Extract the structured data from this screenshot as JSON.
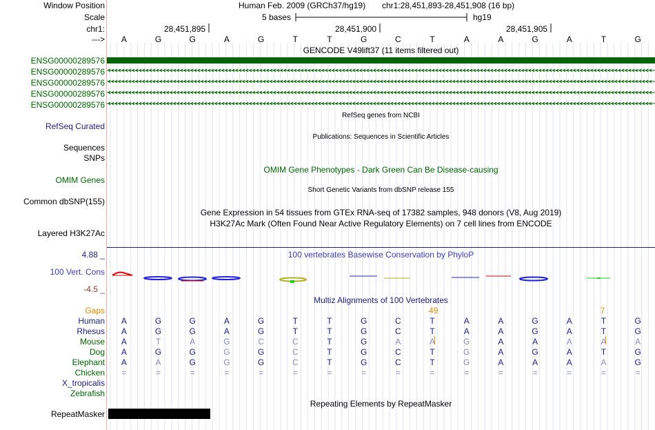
{
  "header": {
    "window_position_label": "Window Position",
    "scale_label": "Scale",
    "chrom_label": "chr1:",
    "arrow_label": "--->",
    "assembly_text": "Human Feb. 2009 (GRCh37/hg19)",
    "position_text": "chr1:28,451,893-28,451,908 (16 bp)",
    "scale_text": "5 bases",
    "scale_db": "hg19",
    "ruler_ticks": [
      "28,451,895",
      "28,451,900",
      "28,451,905"
    ]
  },
  "sequence": [
    "A",
    "G",
    "G",
    "A",
    "G",
    "T",
    "T",
    "G",
    "C",
    "T",
    "A",
    "A",
    "G",
    "A",
    "T",
    "G"
  ],
  "gencode": {
    "title": "GENCODE V49lift37 (11 items filtered out)",
    "items": [
      "ENSG00000289576",
      "ENSG00000289576",
      "ENSG00000289576",
      "ENSG00000289576",
      "ENSG00000289576"
    ]
  },
  "tracks": {
    "refseq_title": "RefSeq genes from NCBI",
    "refseq_label": "RefSeq Curated",
    "publications_title": "Publications: Sequences in Scientific Articles",
    "sequences_label": "Sequences",
    "snps_label": "SNPs",
    "omim_title": "OMIM Gene Phenotypes - Dark Green Can Be Disease-causing",
    "omim_label": "OMIM Genes",
    "dbsnp_title": "Short Genetic Variants from dbSNP release 155",
    "dbsnp_label": "Common dbSNP(155)",
    "gtex_title": "Gene Expression in 54 tissues from GTEx RNA-seq of 17382 samples, 948 donors (V8, Aug 2019)",
    "h3k27_title": "H3K27Ac Mark (Often Found Near Active Regulatory Elements) on 7 cell lines from ENCODE",
    "h3k27_label": "Layered H3K27Ac",
    "phylop_title": "100 vertebrates Basewise Conservation by PhyloP",
    "phylop_label": "100 Vert. Cons",
    "phylop_max": "4.88 _",
    "phylop_min": "-4.5 _",
    "multiz_title": "Multiz Alignments of 100 Vertebrates",
    "repeat_title": "Repeating Elements by RepeatMasker",
    "repeat_label": "RepeatMasker"
  },
  "gaps": {
    "label": "Gaps",
    "values": [
      {
        "text": "49",
        "col": 9.5
      },
      {
        "text": "7",
        "col": 14.5
      }
    ]
  },
  "alignment": [
    {
      "species": "Human",
      "bases": "AGGAGTTGCTAAGATG",
      "dim": "0000000000000000"
    },
    {
      "species": "Rhesus",
      "bases": "AGGAGTTGCTAAGATG",
      "dim": "0000000000000000"
    },
    {
      "species": "Mouse",
      "bases": "ATAGCCTGAAGAAAAA",
      "dim": "0111110011100111"
    },
    {
      "species": "Dog",
      "bases": "AGGGGCTGCTGAGATG",
      "dim": "0001010000100000"
    },
    {
      "species": "Elephant",
      "bases": "AAGGGCTGCTGAAAAG",
      "dim": "0101010000100010"
    },
    {
      "species": "Chicken",
      "bases": "================",
      "dim": "1111111111111111"
    },
    {
      "species": "X_tropicalis",
      "bases": "",
      "dim": ""
    },
    {
      "species": "Zebrafish",
      "bases": "",
      "dim": ""
    }
  ],
  "colors": {
    "gene_green": "#006400",
    "label_navy": "#1c1c7a",
    "gaps_orange": "#e08a00",
    "phylop_title": "#3c3cb4"
  }
}
